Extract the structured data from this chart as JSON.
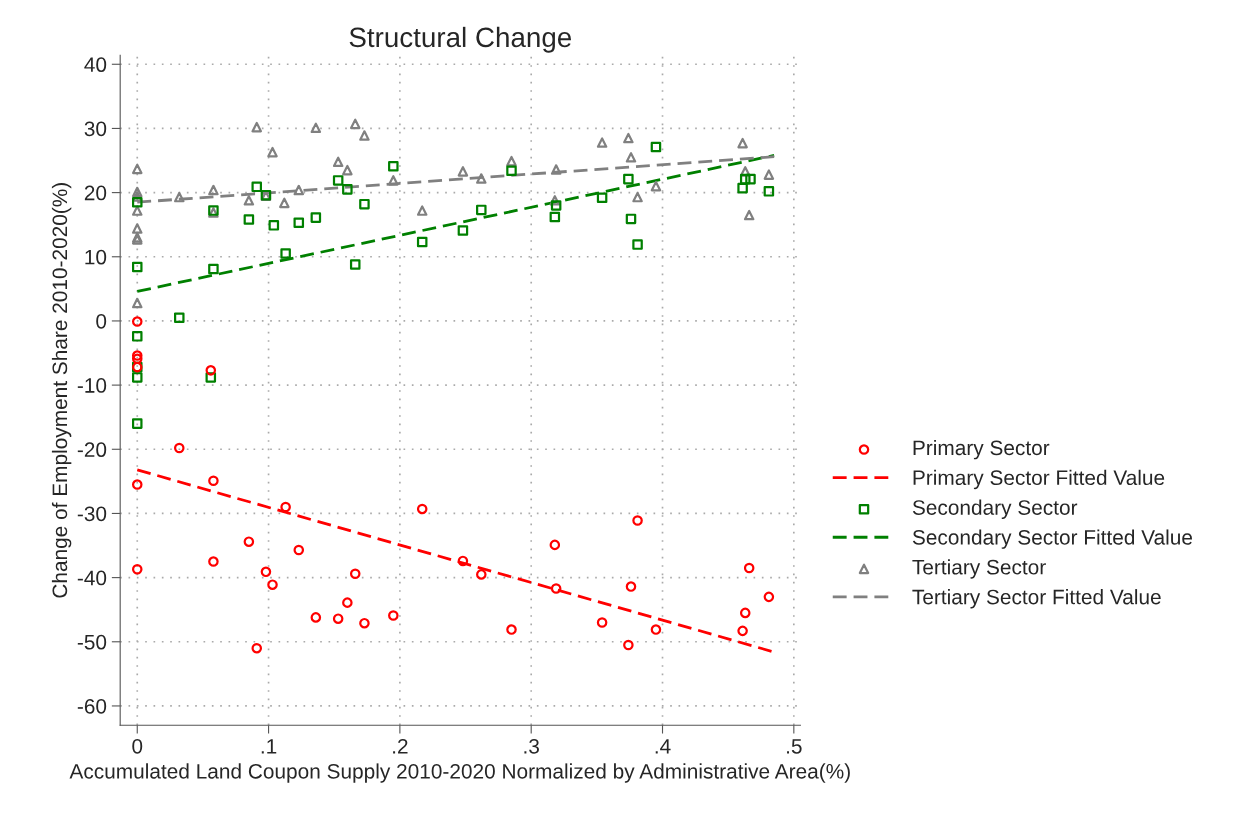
{
  "chart_data": {
    "type": "scatter",
    "title": "Structural Change",
    "xlabel": "Accumulated Land Coupon Supply 2010-2020 Normalized by Administrative Area(%)",
    "ylabel": "Change of Employment Share 2010-2020(%)",
    "xlim": [
      -0.013,
      0.505
    ],
    "ylim": [
      -63,
      41.4
    ],
    "xticks": [
      0,
      {
        "value": 0.1,
        "label": ".1"
      },
      {
        "value": 0.2,
        "label": ".2"
      },
      {
        "value": 0.3,
        "label": ".3"
      },
      {
        "value": 0.4,
        "label": ".4"
      },
      {
        "value": 0.5,
        "label": ".5"
      }
    ],
    "yticks": [
      -60,
      -50,
      -40,
      -30,
      -20,
      -10,
      0,
      10,
      20,
      30,
      40
    ],
    "grid": true,
    "legend": "right",
    "series": [
      {
        "name": "Primary Sector",
        "marker": "circle",
        "color": "#ff0000",
        "x": [
          0,
          0,
          0,
          0,
          0,
          0,
          0.032,
          0.058,
          0.056,
          0.058,
          0.085,
          0.113,
          0.098,
          0.103,
          0.123,
          0.091,
          0.166,
          0.16,
          0.136,
          0.153,
          0.173,
          0.195,
          0.217,
          0.248,
          0.262,
          0.285,
          0.318,
          0.319,
          0.354,
          0.374,
          0.376,
          0.381,
          0.395,
          0.461,
          0.463,
          0.466,
          0.481
        ],
        "values": [
          -0.1,
          -5.4,
          -5.9,
          -7.2,
          -25.5,
          -38.7,
          -19.8,
          -24.9,
          -7.7,
          -37.5,
          -34.4,
          -29.0,
          -39.1,
          -41.1,
          -35.7,
          -51.0,
          -39.4,
          -43.9,
          -46.2,
          -46.4,
          -47.1,
          -45.9,
          -29.3,
          -37.4,
          -39.5,
          -48.1,
          -34.9,
          -41.7,
          -47.0,
          -50.5,
          -41.4,
          -31.1,
          -48.1,
          -48.3,
          -45.5,
          -38.5,
          -43.0
        ]
      },
      {
        "name": "Primary Sector Fitted Value",
        "type": "line",
        "line_style": "dashed",
        "color": "#ff0000",
        "x": [
          0,
          0.485
        ],
        "values": [
          -23.2,
          -51.6
        ]
      },
      {
        "name": "Secondary Sector",
        "marker": "square",
        "color": "#008000",
        "x": [
          0,
          0,
          0,
          0,
          0,
          0,
          0.032,
          0.058,
          0.058,
          0.056,
          0.085,
          0.091,
          0.098,
          0.104,
          0.113,
          0.123,
          0.136,
          0.153,
          0.16,
          0.166,
          0.173,
          0.195,
          0.217,
          0.248,
          0.262,
          0.285,
          0.318,
          0.319,
          0.354,
          0.374,
          0.376,
          0.381,
          0.395,
          0.461,
          0.463,
          0.467,
          0.481
        ],
        "values": [
          18.5,
          8.4,
          -2.4,
          -7.2,
          -8.8,
          -16.0,
          0.5,
          17.2,
          8.1,
          -8.8,
          15.8,
          20.9,
          19.6,
          14.9,
          10.5,
          15.3,
          16.1,
          21.9,
          20.5,
          8.8,
          18.2,
          24.1,
          12.3,
          14.1,
          17.3,
          23.4,
          16.2,
          18.0,
          19.2,
          22.1,
          15.9,
          11.9,
          27.1,
          20.7,
          22.1,
          22.1,
          20.2
        ]
      },
      {
        "name": "Secondary Sector Fitted Value",
        "type": "line",
        "line_style": "dashed",
        "color": "#008000",
        "x": [
          0,
          0.485
        ],
        "values": [
          4.6,
          25.8
        ]
      },
      {
        "name": "Tertiary Sector",
        "marker": "triangle",
        "color": "#808080",
        "x": [
          0,
          0,
          0,
          0,
          0,
          0,
          0,
          0,
          0.032,
          0.058,
          0.058,
          0.085,
          0.091,
          0.098,
          0.103,
          0.112,
          0.123,
          0.136,
          0.153,
          0.16,
          0.166,
          0.173,
          0.195,
          0.217,
          0.248,
          0.262,
          0.285,
          0.318,
          0.319,
          0.354,
          0.374,
          0.376,
          0.381,
          0.395,
          0.461,
          0.463,
          0.466,
          0.481
        ],
        "values": [
          23.7,
          20.1,
          19.4,
          17.2,
          14.4,
          13.0,
          12.7,
          2.8,
          19.3,
          20.4,
          16.9,
          18.8,
          30.2,
          19.5,
          26.3,
          18.4,
          20.4,
          30.1,
          24.8,
          23.5,
          30.7,
          28.9,
          21.9,
          17.2,
          23.3,
          22.2,
          24.9,
          18.8,
          23.6,
          27.8,
          28.5,
          25.5,
          19.3,
          21.0,
          27.7,
          23.3,
          16.5,
          22.8
        ]
      },
      {
        "name": "Tertiary Sector Fitted Value",
        "type": "line",
        "line_style": "dashed",
        "color": "#808080",
        "x": [
          0,
          0.485
        ],
        "values": [
          18.5,
          25.6
        ]
      }
    ]
  }
}
